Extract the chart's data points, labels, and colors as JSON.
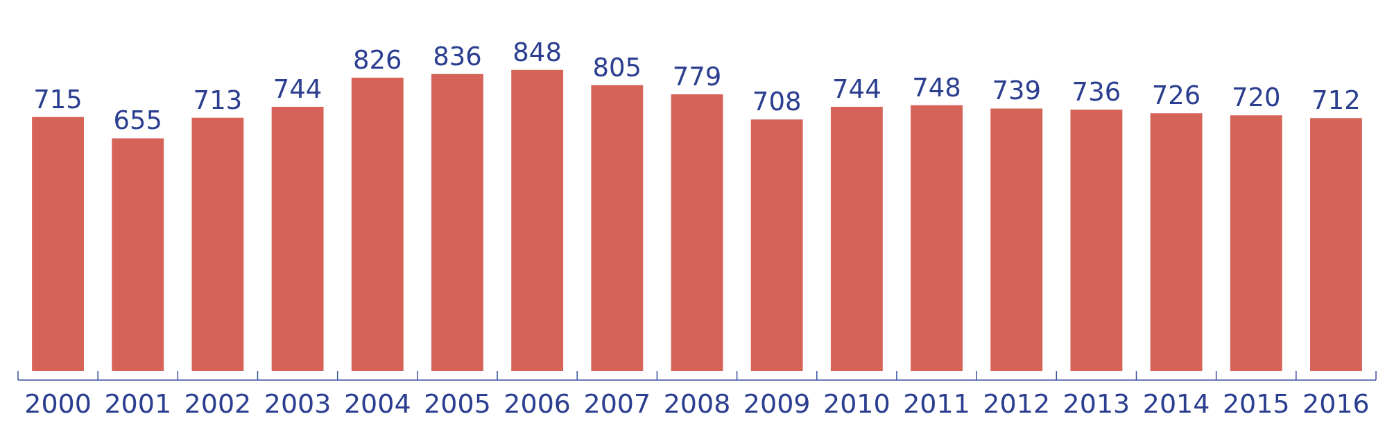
{
  "chart_data": {
    "type": "bar",
    "categories": [
      "2000",
      "2001",
      "2002",
      "2003",
      "2004",
      "2005",
      "2006",
      "2007",
      "2008",
      "2009",
      "2010",
      "2011",
      "2012",
      "2013",
      "2014",
      "2015",
      "2016"
    ],
    "values": [
      715,
      655,
      713,
      744,
      826,
      836,
      848,
      805,
      779,
      708,
      744,
      748,
      739,
      736,
      726,
      720,
      712
    ],
    "color": "#d66358",
    "data_labels": true
  }
}
